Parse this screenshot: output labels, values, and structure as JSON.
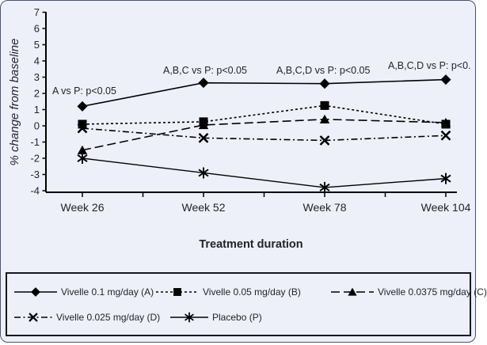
{
  "frame": {
    "background_color": "#edf0f8",
    "outer_border_color": "#46527a",
    "legend_border_color": "#14181f",
    "line_color": "#000000"
  },
  "chart_data": {
    "type": "line",
    "title": "",
    "xlabel": "Treatment duration",
    "ylabel": "% change from baseline",
    "ylim": [
      -4,
      7
    ],
    "ytick_step": 1,
    "grid": false,
    "legend_position": "bottom",
    "categories": [
      "Week 26",
      "Week 52",
      "Week 78",
      "Week 104"
    ],
    "series": [
      {
        "name": "Vivelle 0.1 mg/day (A)",
        "marker": "diamond",
        "linestyle": "solid",
        "values": [
          1.2,
          2.65,
          2.6,
          2.85
        ]
      },
      {
        "name": "Vivelle 0.05 mg/day (B)",
        "marker": "square",
        "linestyle": "dotted",
        "values": [
          0.1,
          0.25,
          1.25,
          0.1
        ]
      },
      {
        "name": "Vivelle 0.0375 mg/day (C)",
        "marker": "triangle",
        "linestyle": "dashed",
        "values": [
          -1.5,
          0.05,
          0.4,
          0.2
        ]
      },
      {
        "name": "Vivelle 0.025 mg/day (D)",
        "marker": "x",
        "linestyle": "dashdot",
        "values": [
          -0.15,
          -0.75,
          -0.9,
          -0.6
        ]
      },
      {
        "name": "Placebo (P)",
        "marker": "asterisk",
        "linestyle": "solid",
        "values": [
          -2.0,
          -2.9,
          -3.8,
          -3.25
        ]
      }
    ],
    "annotations": [
      {
        "text": "A vs P: p<0.05",
        "x": 65,
        "y": 118
      },
      {
        "text": "A,B,C vs P: p<0.05",
        "x": 205,
        "y": 92
      },
      {
        "text": "A,B,C,D vs P: p<0.05",
        "x": 348,
        "y": 92
      },
      {
        "text": "A,B,C,D vs P: p<0.",
        "x": 489,
        "y": 86
      }
    ]
  }
}
